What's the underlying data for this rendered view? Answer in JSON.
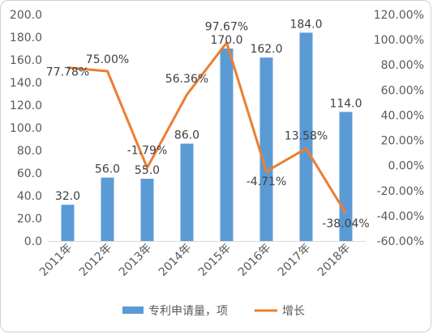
{
  "chart_data": {
    "type": "bar+line",
    "categories": [
      "2011年",
      "2012年",
      "2013年",
      "2014年",
      "2015年",
      "2016年",
      "2017年",
      "2018年"
    ],
    "series": [
      {
        "name": "专利申请量，项",
        "type": "bar",
        "axis": "left",
        "color": "#5b9bd5",
        "values": [
          32.0,
          56.0,
          55.0,
          86.0,
          170.0,
          162.0,
          184.0,
          114.0
        ],
        "labels": [
          "32.0",
          "56.0",
          "55.0",
          "86.0",
          "170.0",
          "162.0",
          "184.0",
          "114.0"
        ]
      },
      {
        "name": "增长",
        "type": "line",
        "axis": "right",
        "color": "#ed7d31",
        "values": [
          77.78,
          75.0,
          -1.79,
          56.36,
          97.67,
          -4.71,
          13.58,
          -38.04
        ],
        "labels": [
          "77.78%",
          "75.00%",
          "-1.79%",
          "56.36%",
          "97.67%",
          "-4.71%",
          "13.58%",
          "-38.04%"
        ]
      }
    ],
    "y_left": {
      "ylim": [
        0,
        200
      ],
      "ticks": [
        "0.0",
        "20.0",
        "40.0",
        "60.0",
        "80.0",
        "100.0",
        "120.0",
        "140.0",
        "160.0",
        "180.0",
        "200.0"
      ]
    },
    "y_right": {
      "ylim": [
        -60,
        120
      ],
      "ticks": [
        "-60.00%",
        "-40.00%",
        "-20.00%",
        "0.00%",
        "20.00%",
        "40.00%",
        "60.00%",
        "80.00%",
        "100.00%",
        "120.00%"
      ]
    },
    "grid": false,
    "legend_position": "bottom"
  }
}
